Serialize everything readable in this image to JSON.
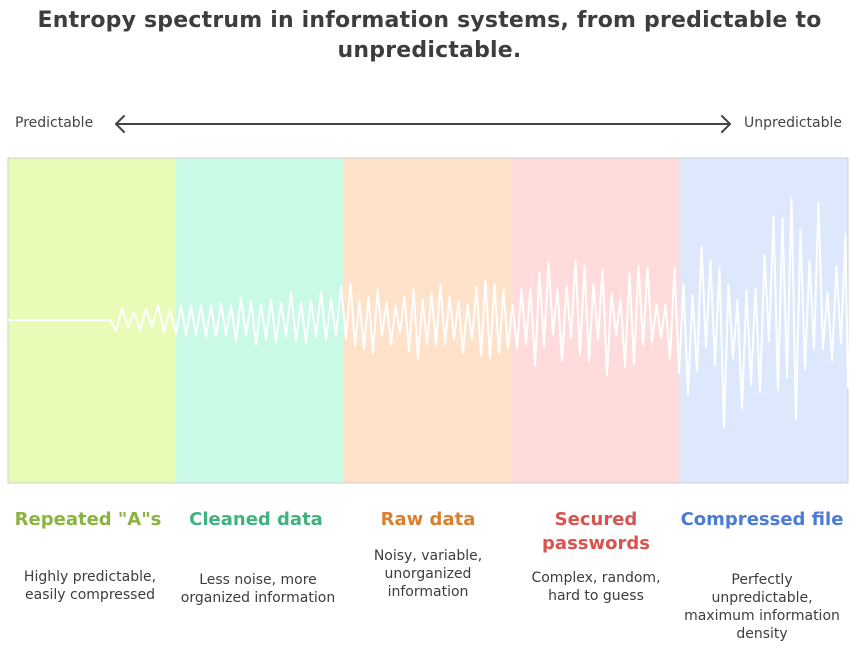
{
  "title": "Entropy spectrum in information systems, from predictable to unpredictable.",
  "axis": {
    "left_label": "Predictable",
    "right_label": "Unpredictable"
  },
  "columns": [
    {
      "title": "Repeated \"A\"s",
      "description": "Highly predictable, easily compressed",
      "bg_color": "#e8fbb7",
      "title_color": "#8bb33f"
    },
    {
      "title": "Cleaned data",
      "description": "Less noise, more organized information",
      "bg_color": "#c8fae6",
      "title_color": "#3fb27f"
    },
    {
      "title": "Raw data",
      "description": "Noisy, variable, unorganized information",
      "bg_color": "#ffe2c9",
      "title_color": "#d9802e"
    },
    {
      "title": "Secured passwords",
      "description": "Complex, random, hard to guess",
      "bg_color": "#ffdcdb",
      "title_color": "#d9534f"
    },
    {
      "title": "Compressed file",
      "description": "Perfectly unpredictable, maximum information density",
      "bg_color": "#dde8fd",
      "title_color": "#4a7bd6"
    }
  ],
  "colors": {
    "wave": "#ffffff",
    "axis_arrow": "#444444"
  }
}
